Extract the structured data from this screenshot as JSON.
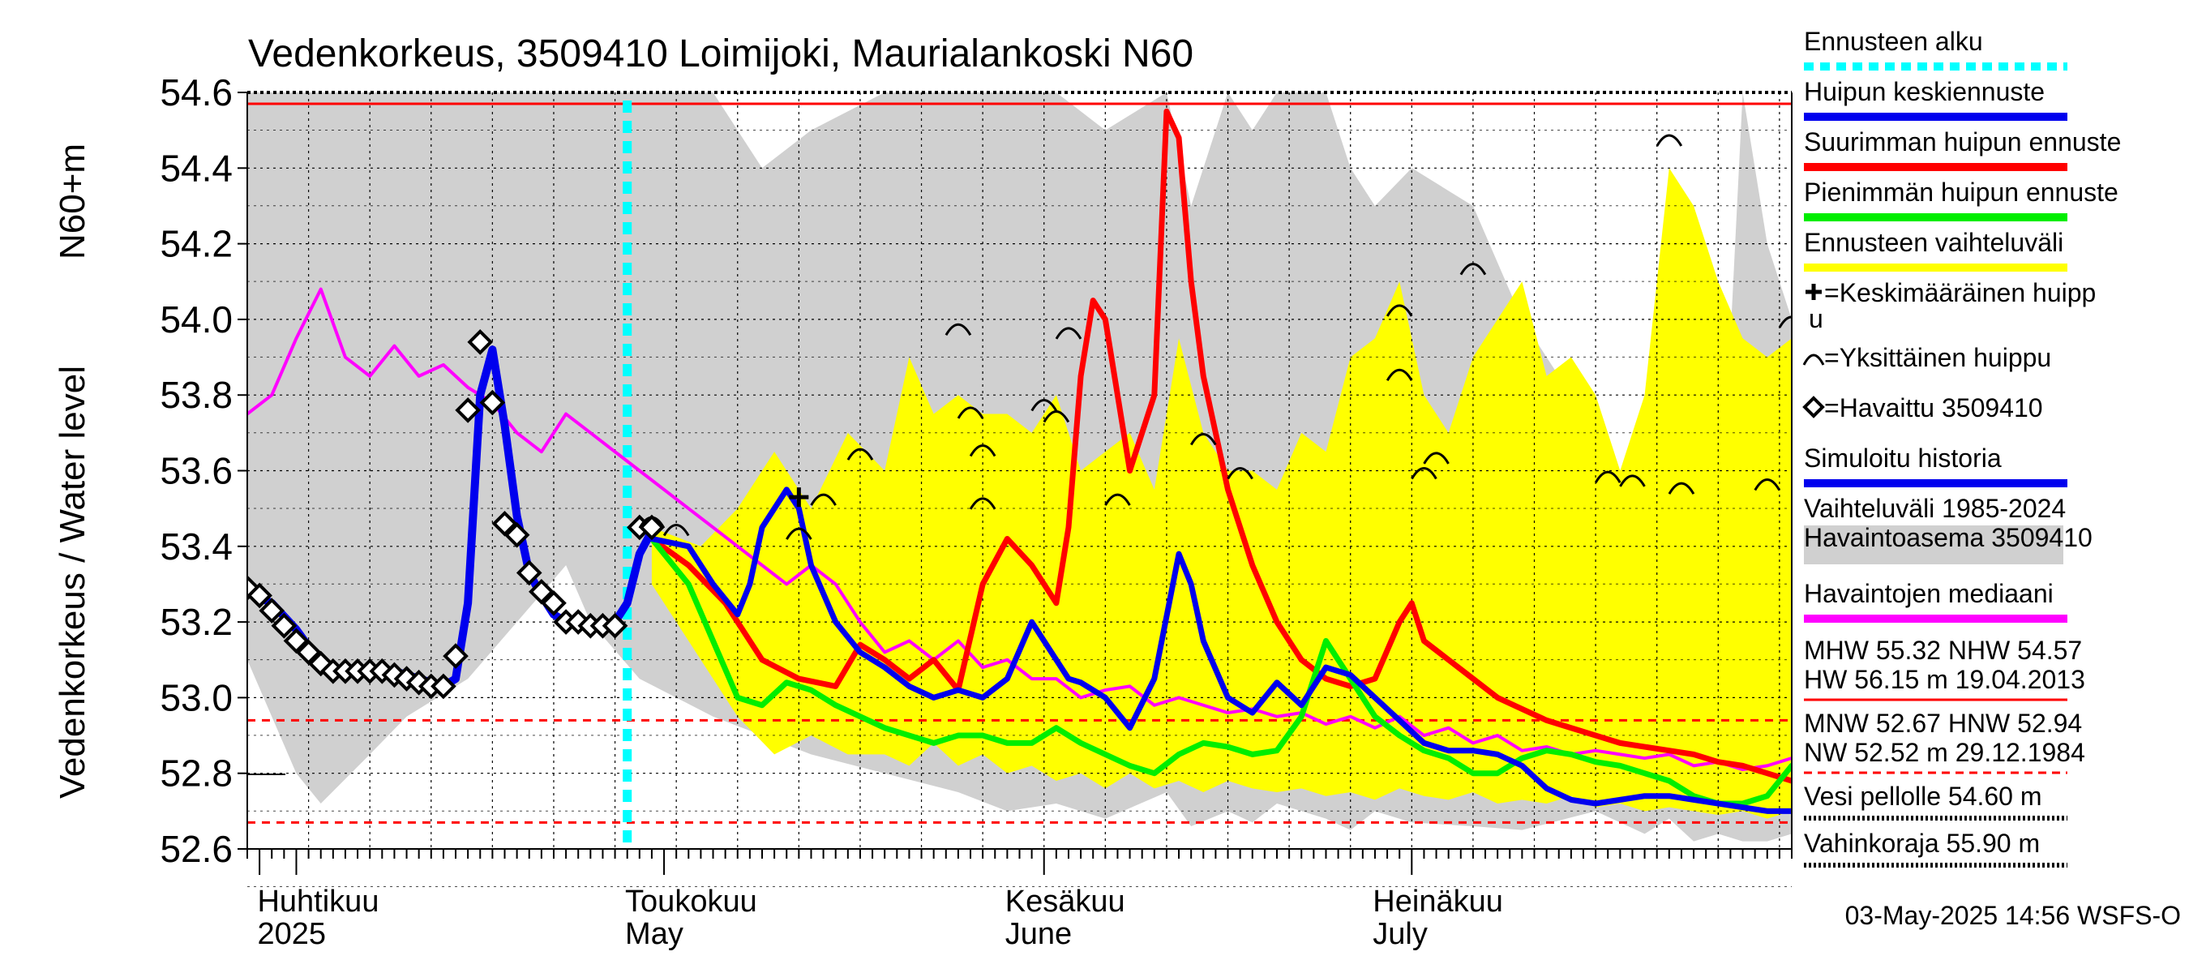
{
  "chart_data": {
    "type": "line",
    "title": "Vedenkorkeus, 3509410 Loimijoki, Maurialankoski N60",
    "ylabel_fi": "N60+m",
    "ylabel_en": "Vedenkorkeus / Water level",
    "ylim": [
      52.6,
      54.6
    ],
    "yticks": [
      "52.6",
      "52.8",
      "53.0",
      "53.2",
      "53.4",
      "53.6",
      "53.8",
      "54.0",
      "54.2",
      "54.4",
      "54.6"
    ],
    "x_range_days": [
      0,
      126
    ],
    "x_note": "x = day offset from 28 March 2025",
    "month_labels": [
      {
        "day": 4,
        "fi": "Huhtikuu",
        "en": "2025"
      },
      {
        "day": 34,
        "fi": "Toukokuu",
        "en": "May"
      },
      {
        "day": 65,
        "fi": "Kesäkuu",
        "en": "June"
      },
      {
        "day": 95,
        "fi": "Heinäkuu",
        "en": "July"
      }
    ],
    "forecast_start_day": 31,
    "reference_lines": [
      {
        "name": "NHW",
        "value": 54.57,
        "color": "#ff0000",
        "style": "solid"
      },
      {
        "name": "HNW",
        "value": 52.94,
        "color": "#ff0000",
        "style": "dashed"
      },
      {
        "name": "MNW-low",
        "value": 52.67,
        "color": "#ff0000",
        "style": "dashed"
      }
    ],
    "series": [
      {
        "name": "Vaihteluväli 1985-2024 Havaintoasema 3509410",
        "kind": "band",
        "color": "#d0d0d0",
        "x": [
          0,
          4,
          6,
          10,
          13,
          18,
          26,
          28,
          32,
          35,
          38,
          42,
          46,
          52,
          58,
          62,
          66,
          70,
          75,
          77,
          80,
          82,
          84,
          88,
          90,
          92,
          95,
          100,
          104,
          110,
          114,
          116,
          118,
          120,
          122,
          124,
          126
        ],
        "high": [
          54.6,
          54.6,
          54.6,
          54.6,
          54.6,
          54.6,
          54.6,
          54.6,
          54.6,
          54.6,
          54.6,
          54.4,
          54.5,
          54.6,
          54.6,
          54.6,
          54.6,
          54.5,
          54.6,
          54.3,
          54.6,
          54.5,
          54.6,
          54.6,
          54.4,
          54.3,
          54.4,
          54.3,
          54.0,
          53.7,
          53.4,
          53.5,
          53.9,
          53.3,
          54.6,
          54.2,
          54.0
        ],
        "low": [
          53.1,
          52.8,
          52.72,
          52.85,
          52.95,
          53.05,
          53.35,
          53.2,
          53.05,
          53.0,
          52.95,
          52.9,
          52.85,
          52.8,
          52.75,
          52.7,
          52.72,
          52.68,
          52.75,
          52.66,
          52.7,
          52.67,
          52.72,
          52.68,
          52.65,
          52.7,
          52.67,
          52.66,
          52.65,
          52.7,
          52.64,
          52.68,
          52.62,
          52.64,
          52.62,
          52.62,
          52.64
        ]
      },
      {
        "name": "Ennusteen vaihteluväli",
        "kind": "band",
        "color": "#ffff00",
        "x": [
          33,
          37,
          40,
          43,
          46,
          49,
          52,
          54,
          56,
          58,
          60,
          62,
          64,
          66,
          68,
          70,
          72,
          74,
          76,
          78,
          80,
          82,
          84,
          86,
          88,
          90,
          92,
          94,
          96,
          98,
          100,
          102,
          104,
          106,
          108,
          110,
          112,
          114,
          116,
          118,
          120,
          122,
          124,
          126
        ],
        "high": [
          53.45,
          53.4,
          53.5,
          53.65,
          53.5,
          53.7,
          53.6,
          53.9,
          53.75,
          53.8,
          53.75,
          53.75,
          53.7,
          53.8,
          53.6,
          53.65,
          53.7,
          53.55,
          53.95,
          53.7,
          53.6,
          53.6,
          53.55,
          53.7,
          53.65,
          53.9,
          53.95,
          54.1,
          53.8,
          53.7,
          53.9,
          54.0,
          54.1,
          53.85,
          53.9,
          53.8,
          53.6,
          53.8,
          54.4,
          54.3,
          54.1,
          53.95,
          53.9,
          53.95
        ],
        "low": [
          53.3,
          53.1,
          52.95,
          52.85,
          52.9,
          52.85,
          52.85,
          52.82,
          52.88,
          52.82,
          52.85,
          52.8,
          52.82,
          52.78,
          52.8,
          52.76,
          52.8,
          52.76,
          52.78,
          52.75,
          52.78,
          52.76,
          52.75,
          52.76,
          52.74,
          52.75,
          52.73,
          52.76,
          52.74,
          52.73,
          52.75,
          52.72,
          52.73,
          52.72,
          52.74,
          52.71,
          52.72,
          52.7,
          52.71,
          52.7,
          52.69,
          52.7,
          52.68,
          52.7
        ]
      },
      {
        "name": "Havaintojen mediaani",
        "color": "#ff00ff",
        "width": 4,
        "x": [
          0,
          2,
          4,
          6,
          8,
          10,
          12,
          14,
          16,
          18,
          20,
          22,
          24,
          26,
          28,
          30,
          32,
          34,
          36,
          38,
          40,
          42,
          44,
          46,
          48,
          50,
          52,
          54,
          56,
          58,
          60,
          62,
          64,
          66,
          68,
          70,
          72,
          74,
          76,
          78,
          80,
          82,
          84,
          86,
          88,
          90,
          92,
          94,
          96,
          98,
          100,
          102,
          104,
          106,
          108,
          110,
          112,
          114,
          116,
          118,
          120,
          122,
          124,
          126
        ],
        "y": [
          53.75,
          53.8,
          53.95,
          54.08,
          53.9,
          53.85,
          53.93,
          53.85,
          53.88,
          53.82,
          53.78,
          53.7,
          53.65,
          53.75,
          53.7,
          53.65,
          53.6,
          53.55,
          53.5,
          53.45,
          53.4,
          53.35,
          53.3,
          53.35,
          53.3,
          53.2,
          53.12,
          53.15,
          53.1,
          53.15,
          53.08,
          53.1,
          53.05,
          53.05,
          53.0,
          53.02,
          53.03,
          52.98,
          53.0,
          52.98,
          52.96,
          52.97,
          52.95,
          52.96,
          52.93,
          52.95,
          52.92,
          52.95,
          52.9,
          52.92,
          52.88,
          52.9,
          52.86,
          52.87,
          52.85,
          52.86,
          52.85,
          52.84,
          52.85,
          52.82,
          52.83,
          52.81,
          52.82,
          52.84
        ]
      },
      {
        "name": "Suurimman huipun ennuste",
        "color": "#ff0000",
        "width": 7,
        "x": [
          33,
          36,
          39,
          42,
          45,
          48,
          50,
          52,
          54,
          56,
          58,
          60,
          62,
          64,
          66,
          67,
          68,
          69,
          70,
          72,
          74,
          75,
          76,
          77,
          78,
          80,
          82,
          84,
          86,
          88,
          90,
          92,
          94,
          95,
          96,
          98,
          100,
          102,
          104,
          106,
          108,
          110,
          112,
          114,
          116,
          118,
          120,
          122,
          124,
          126
        ],
        "y": [
          53.42,
          53.35,
          53.25,
          53.1,
          53.05,
          53.03,
          53.14,
          53.1,
          53.05,
          53.1,
          53.02,
          53.3,
          53.42,
          53.35,
          53.25,
          53.45,
          53.85,
          54.05,
          54.0,
          53.6,
          53.8,
          54.55,
          54.48,
          54.1,
          53.85,
          53.55,
          53.35,
          53.2,
          53.1,
          53.05,
          53.03,
          53.05,
          53.2,
          53.25,
          53.15,
          53.1,
          53.05,
          53.0,
          52.97,
          52.94,
          52.92,
          52.9,
          52.88,
          52.87,
          52.86,
          52.85,
          52.83,
          52.82,
          52.8,
          52.78
        ]
      },
      {
        "name": "Pienimmän huipun ennuste",
        "color": "#00ee00",
        "width": 7,
        "x": [
          33,
          36,
          38,
          40,
          42,
          44,
          46,
          48,
          50,
          52,
          54,
          56,
          58,
          60,
          62,
          64,
          66,
          68,
          70,
          72,
          74,
          76,
          78,
          80,
          82,
          84,
          86,
          88,
          90,
          92,
          94,
          96,
          98,
          100,
          102,
          104,
          106,
          108,
          110,
          112,
          114,
          116,
          118,
          120,
          122,
          124,
          126
        ],
        "y": [
          53.42,
          53.3,
          53.15,
          53.0,
          52.98,
          53.04,
          53.02,
          52.98,
          52.95,
          52.92,
          52.9,
          52.88,
          52.9,
          52.9,
          52.88,
          52.88,
          52.92,
          52.88,
          52.85,
          52.82,
          52.8,
          52.85,
          52.88,
          52.87,
          52.85,
          52.86,
          52.95,
          53.15,
          53.05,
          52.95,
          52.9,
          52.86,
          52.84,
          52.8,
          52.8,
          52.84,
          52.86,
          52.85,
          52.83,
          52.82,
          52.8,
          52.78,
          52.74,
          52.72,
          52.72,
          52.74,
          52.82
        ]
      },
      {
        "name": "Huipun keskiennuste",
        "color": "#0000ee",
        "width": 7,
        "x": [
          33,
          36,
          38,
          40,
          41,
          42,
          44,
          45,
          46,
          48,
          50,
          52,
          54,
          56,
          58,
          60,
          62,
          64,
          66,
          67,
          68,
          70,
          72,
          74,
          76,
          77,
          78,
          80,
          82,
          84,
          86,
          88,
          90,
          92,
          94,
          96,
          98,
          100,
          102,
          104,
          106,
          108,
          110,
          112,
          114,
          116,
          118,
          120,
          122,
          124,
          126
        ],
        "y": [
          53.42,
          53.4,
          53.3,
          53.22,
          53.3,
          53.45,
          53.55,
          53.5,
          53.35,
          53.2,
          53.12,
          53.08,
          53.03,
          53.0,
          53.02,
          53.0,
          53.05,
          53.2,
          53.1,
          53.05,
          53.04,
          53.0,
          52.92,
          53.05,
          53.38,
          53.3,
          53.15,
          53.0,
          52.96,
          53.04,
          52.98,
          53.08,
          53.06,
          53.0,
          52.94,
          52.88,
          52.86,
          52.86,
          52.85,
          52.82,
          52.76,
          52.73,
          52.72,
          52.73,
          52.74,
          52.74,
          52.73,
          52.72,
          52.71,
          52.7,
          52.7
        ]
      },
      {
        "name": "Simuloitu historia",
        "color": "#0000ee",
        "width": 10,
        "x": [
          0,
          2,
          4,
          6,
          8,
          10,
          12,
          14,
          16,
          17,
          18,
          19,
          20,
          21,
          22,
          23,
          24,
          25,
          26,
          27,
          28,
          29,
          30,
          31,
          32,
          33
        ],
        "y": [
          53.28,
          53.25,
          53.18,
          53.09,
          53.07,
          53.07,
          53.07,
          53.05,
          53.03,
          53.05,
          53.25,
          53.8,
          53.92,
          53.72,
          53.48,
          53.33,
          53.27,
          53.22,
          53.2,
          53.19,
          53.19,
          53.19,
          53.2,
          53.25,
          53.38,
          53.44
        ]
      },
      {
        "name": "Havaittu 3509410",
        "kind": "markers",
        "marker": "diamond",
        "color": "#000000",
        "x": [
          0,
          1,
          2,
          3,
          4,
          5,
          6,
          7,
          8,
          9,
          10,
          11,
          12,
          13,
          14,
          15,
          16,
          17,
          18,
          19,
          20,
          21,
          22,
          23,
          24,
          25,
          26,
          27,
          28,
          29,
          30,
          32,
          33
        ],
        "y": [
          53.29,
          53.27,
          53.23,
          53.19,
          53.15,
          53.12,
          53.09,
          53.07,
          53.07,
          53.07,
          53.07,
          53.07,
          53.06,
          53.05,
          53.04,
          53.03,
          53.03,
          53.11,
          53.76,
          53.94,
          53.78,
          53.46,
          53.43,
          53.33,
          53.28,
          53.25,
          53.2,
          53.2,
          53.19,
          53.19,
          53.19,
          53.45,
          53.45
        ]
      },
      {
        "name": "Keskimääräinen huippu",
        "kind": "markers",
        "marker": "plus",
        "color": "#000000",
        "x": [
          45
        ],
        "y": [
          53.53
        ]
      },
      {
        "name": "Yksittäinen huippu",
        "kind": "markers",
        "marker": "arc",
        "color": "#000000",
        "x": [
          33,
          35,
          45,
          47,
          50,
          58,
          59,
          60,
          60,
          65,
          66,
          67,
          71,
          78,
          81,
          94,
          94,
          96,
          97,
          100,
          111,
          113,
          116,
          117,
          124,
          126
        ],
        "y": [
          53.47,
          53.45,
          53.44,
          53.53,
          53.65,
          53.98,
          53.76,
          53.66,
          53.52,
          53.78,
          53.75,
          53.97,
          53.53,
          53.69,
          53.6,
          54.03,
          53.86,
          53.6,
          53.64,
          54.14,
          53.59,
          53.58,
          54.48,
          53.56,
          53.57,
          54.0
        ]
      }
    ],
    "legend": {
      "placement": "right",
      "items": [
        {
          "label": "Ennusteen alku",
          "color": "#00ffff",
          "style": "dotted"
        },
        {
          "label": "Huipun keskiennuste",
          "color": "#0000ee",
          "style": "solid"
        },
        {
          "label": "Suurimman huipun ennuste",
          "color": "#ff0000",
          "style": "solid"
        },
        {
          "label": "Pienimmän huipun ennuste",
          "color": "#00ee00",
          "style": "solid"
        },
        {
          "label": "Ennusteen vaihteluväli",
          "color": "#ffff00",
          "style": "solid"
        },
        {
          "label": "=Keskimääräinen huipp",
          "label2": "u",
          "marker": "plus"
        },
        {
          "label": "=Yksittäinen huippu",
          "marker": "arc"
        },
        {
          "label": "=Havaittu 3509410",
          "marker": "diamond"
        },
        {
          "label": "Simuloitu historia",
          "color": "#0000ee",
          "style": "solid"
        },
        {
          "label": "Vaihteluväli 1985-2024",
          "label2": " Havaintoasema 3509410",
          "color": "#d0d0d0",
          "style": "solid"
        },
        {
          "label": "Havaintojen mediaani",
          "color": "#ff00ff",
          "style": "solid"
        }
      ],
      "stats": [
        {
          "line1": "MHW  55.32 NHW  54.57",
          "line2": "HW  56.15 m 19.04.2013",
          "color": "#ff0000",
          "style": "solid"
        },
        {
          "line1": "MNW  52.67 HNW  52.94",
          "line2": "NW  52.52 m 29.12.1984",
          "color": "#ff0000",
          "style": "dashed"
        },
        {
          "line1": "Vesi pellolle 54.60 m",
          "color": "#000000",
          "style": "dotted"
        },
        {
          "line1": "Vahinkoraja 55.90 m",
          "color": "#000000",
          "style": "dotted"
        }
      ]
    },
    "footer": "03-May-2025 14:56 WSFS-O"
  }
}
